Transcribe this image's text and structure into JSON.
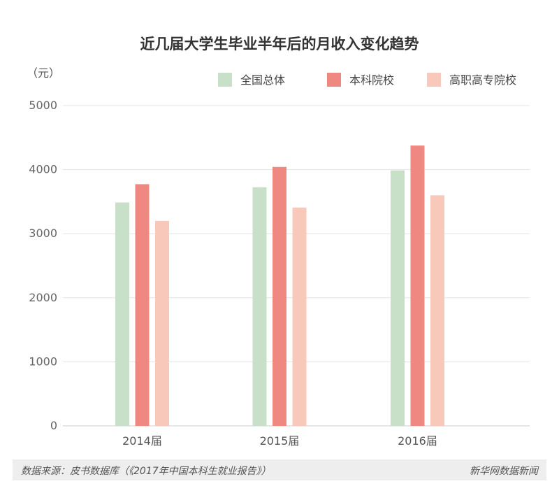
{
  "chart_data": {
    "type": "bar",
    "title": "近几届大学生毕业半年后的月收入变化趋势",
    "unit_label": "（元）",
    "categories": [
      "2014届",
      "2015届",
      "2016届"
    ],
    "series": [
      {
        "name": "全国总体",
        "color": "#c8e0c8",
        "values": [
          3487,
          3726,
          3988
        ]
      },
      {
        "name": "本科院校",
        "color": "#ef8880",
        "values": [
          3773,
          4042,
          4376
        ]
      },
      {
        "name": "高职高专院校",
        "color": "#f8c8bb",
        "values": [
          3200,
          3409,
          3599
        ]
      }
    ],
    "yticks": [
      0,
      1000,
      2000,
      3000,
      4000,
      5000
    ],
    "ylim": [
      0,
      5000
    ],
    "grid": true,
    "legend_position": "top-right"
  },
  "footer": {
    "source": "数据来源：皮书数据库（《2017年中国本科生就业报告》）",
    "brand": "新华网数据新闻"
  }
}
